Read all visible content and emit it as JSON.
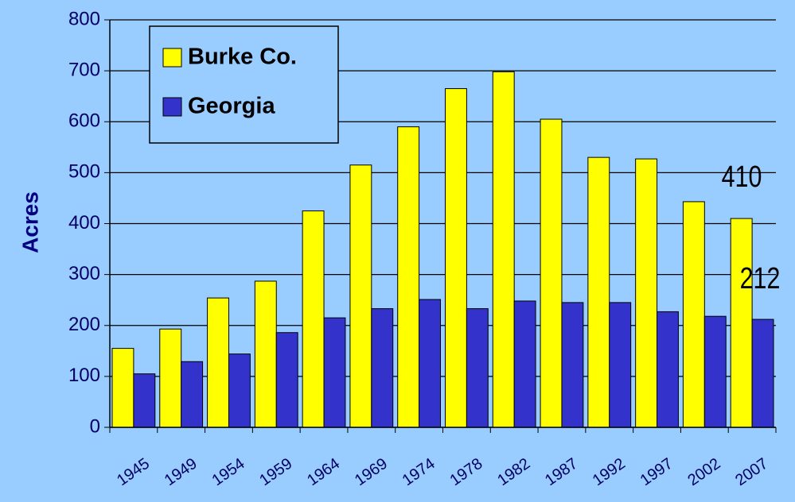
{
  "chart_data": {
    "type": "bar",
    "categories": [
      "1945",
      "1949",
      "1954",
      "1959",
      "1964",
      "1969",
      "1974",
      "1978",
      "1982",
      "1987",
      "1992",
      "1997",
      "2002",
      "2007"
    ],
    "series": [
      {
        "name": "Burke Co.",
        "color": "#ffff00",
        "values": [
          155,
          193,
          254,
          287,
          425,
          515,
          590,
          665,
          698,
          605,
          530,
          527,
          443,
          410
        ],
        "value_labels": [
          null,
          null,
          null,
          null,
          null,
          null,
          null,
          null,
          null,
          null,
          null,
          null,
          null,
          "410"
        ]
      },
      {
        "name": "Georgia",
        "color": "#3333cc",
        "values": [
          105,
          129,
          144,
          186,
          215,
          233,
          251,
          233,
          248,
          245,
          245,
          227,
          218,
          212
        ],
        "value_labels": [
          null,
          null,
          null,
          null,
          null,
          null,
          null,
          null,
          null,
          null,
          null,
          null,
          null,
          "212"
        ]
      }
    ],
    "ylabel": "Acres",
    "ylim": [
      0,
      800
    ],
    "yticks": [
      0,
      100,
      200,
      300,
      400,
      500,
      600,
      700,
      800
    ],
    "grid": true
  }
}
